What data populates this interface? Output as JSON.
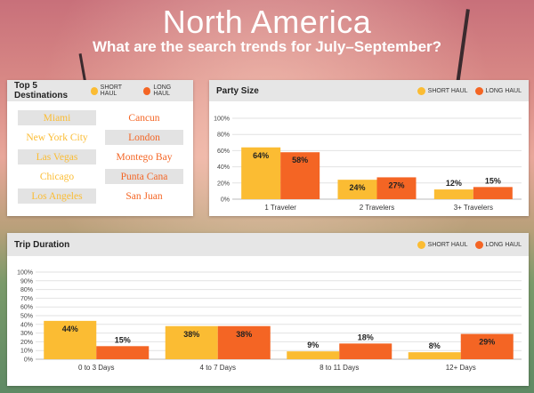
{
  "header": {
    "title": "North America",
    "subtitle": "What are the search trends for July–September?"
  },
  "colors": {
    "short_haul": "#FBBC33",
    "long_haul": "#F46524",
    "card_head": "#e6e6e6"
  },
  "legend": {
    "short_label": "SHORT HAUL",
    "long_label": "LONG HAUL"
  },
  "destinations": {
    "title": "Top 5 Destinations",
    "short_haul": [
      "Miami",
      "New York City",
      "Las Vegas",
      "Chicago",
      "Los Angeles"
    ],
    "long_haul": [
      "Cancun",
      "London",
      "Montego Bay",
      "Punta Cana",
      "San Juan"
    ]
  },
  "chart_data": [
    {
      "type": "bar",
      "title": "Party Size",
      "categories": [
        "1 Traveler",
        "2 Travelers",
        "3+ Travelers"
      ],
      "series": [
        {
          "name": "SHORT HAUL",
          "values": [
            64,
            24,
            12
          ]
        },
        {
          "name": "LONG HAUL",
          "values": [
            58,
            27,
            15
          ]
        }
      ],
      "ylim": [
        0,
        100
      ],
      "yticks": [
        "0%",
        "20%",
        "40%",
        "60%",
        "80%",
        "100%"
      ],
      "grid": true,
      "legend_position": "top-right"
    },
    {
      "type": "bar",
      "title": "Trip Duration",
      "categories": [
        "0 to 3 Days",
        "4 to 7 Days",
        "8 to 11 Days",
        "12+ Days"
      ],
      "series": [
        {
          "name": "SHORT HAUL",
          "values": [
            44,
            38,
            9,
            8
          ]
        },
        {
          "name": "LONG HAUL",
          "values": [
            15,
            38,
            18,
            29
          ]
        }
      ],
      "ylim": [
        0,
        100
      ],
      "yticks": [
        "0%",
        "10%",
        "20%",
        "30%",
        "40%",
        "50%",
        "60%",
        "70%",
        "80%",
        "90%",
        "100%"
      ],
      "grid": true,
      "legend_position": "top-right"
    }
  ]
}
